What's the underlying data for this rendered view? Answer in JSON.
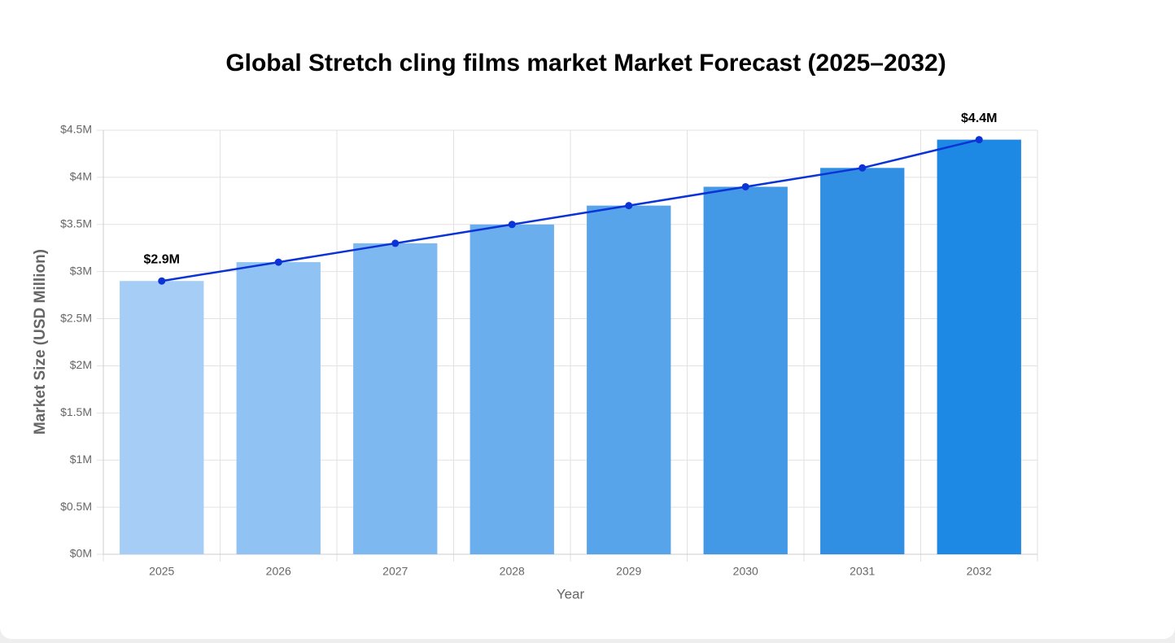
{
  "chart_data": {
    "type": "bar",
    "title": "Global Stretch cling films market Market Forecast (2025–2032)",
    "x_label": "Year",
    "y_label": "Market Size (USD Million)",
    "categories": [
      "2025",
      "2026",
      "2027",
      "2028",
      "2029",
      "2030",
      "2031",
      "2032"
    ],
    "values": [
      2.9,
      3.1,
      3.3,
      3.5,
      3.7,
      3.9,
      4.1,
      4.4
    ],
    "value_labels": [
      "$2.9M",
      null,
      null,
      null,
      null,
      null,
      null,
      "$4.4M"
    ],
    "colors": [
      "#a5cdf5",
      "#90c3f3",
      "#7db8f0",
      "#6aaeed",
      "#57a4ea",
      "#4499e6",
      "#318fe3",
      "#1e88e5"
    ],
    "line_overlay": true,
    "line_color": "#0b33d6",
    "ylim": [
      0,
      4.5
    ],
    "yticks": [
      {
        "value": 0,
        "label": "$0M"
      },
      {
        "value": 0.5,
        "label": "$0.5M"
      },
      {
        "value": 1,
        "label": "$1M"
      },
      {
        "value": 1.5,
        "label": "$1.5M"
      },
      {
        "value": 2,
        "label": "$2M"
      },
      {
        "value": 2.5,
        "label": "$2.5M"
      },
      {
        "value": 3,
        "label": "$3M"
      },
      {
        "value": 3.5,
        "label": "$3.5M"
      },
      {
        "value": 4,
        "label": "$4M"
      },
      {
        "value": 4.5,
        "label": "$4.5M"
      }
    ],
    "grid": true
  }
}
